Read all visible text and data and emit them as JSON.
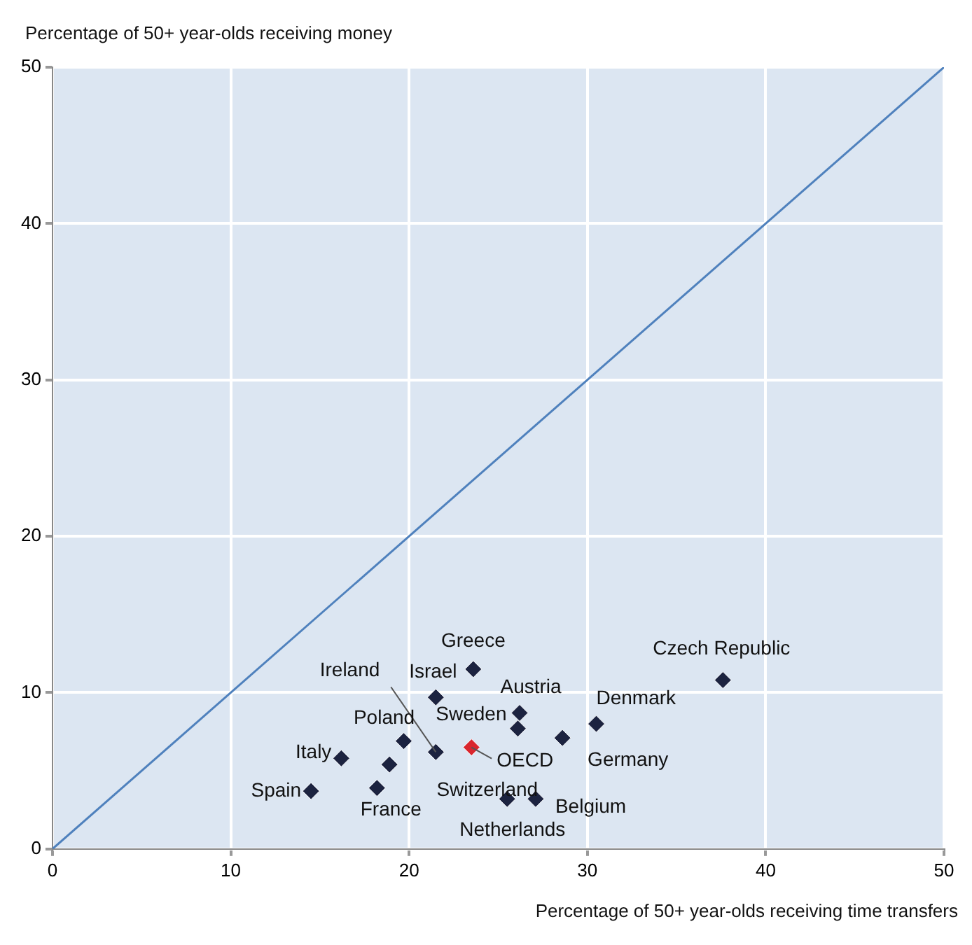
{
  "chart_data": {
    "type": "scatter",
    "ylabel": "Percentage of 50+ year-olds receiving money",
    "xlabel": "Percentage of 50+ year-olds receiving time transfers",
    "xlim": [
      0,
      50
    ],
    "ylim": [
      0,
      50
    ],
    "xticks": [
      0,
      10,
      20,
      30,
      40,
      50
    ],
    "yticks": [
      0,
      10,
      20,
      30,
      40,
      50
    ],
    "grid": true,
    "marker": "diamond",
    "legend": false,
    "series": [
      {
        "color": "#1c2340",
        "x": [
          23.6,
          21.5,
          21.5,
          19.7,
          18.9,
          16.2,
          14.5,
          18.2,
          26.2,
          26.1,
          28.6,
          30.5,
          37.6,
          25.5,
          27.1
        ],
        "values": [
          11.5,
          9.7,
          6.2,
          6.9,
          5.4,
          5.8,
          3.7,
          3.9,
          8.7,
          7.7,
          7.1,
          8.0,
          10.8,
          3.2,
          3.2
        ]
      },
      {
        "color": "#d9262e",
        "x": [
          23.5
        ],
        "values": [
          6.5
        ]
      },
      {
        "type": "line",
        "marker": "none",
        "color": "#4f81bd",
        "x": [
          0,
          50
        ],
        "values": [
          0,
          50
        ]
      }
    ],
    "annotations": [
      {
        "text": "Greece",
        "x": 23.6,
        "y": 11.5
      },
      {
        "text": "Israel",
        "x": 21.5,
        "y": 9.7
      },
      {
        "text": "Ireland",
        "x": 21.5,
        "y": 6.2
      },
      {
        "text": "Poland",
        "x": 19.7,
        "y": 6.9
      },
      {
        "text": "Italy",
        "x": 16.2,
        "y": 5.8
      },
      {
        "text": "Spain",
        "x": 14.5,
        "y": 3.7
      },
      {
        "text": "France",
        "x": 18.2,
        "y": 3.9
      },
      {
        "text": "Austria",
        "x": 26.2,
        "y": 8.7
      },
      {
        "text": "Sweden",
        "x": 26.1,
        "y": 7.7
      },
      {
        "text": "Germany",
        "x": 28.6,
        "y": 7.1
      },
      {
        "text": "Denmark",
        "x": 30.5,
        "y": 8.0
      },
      {
        "text": "Czech Republic",
        "x": 37.6,
        "y": 10.8
      },
      {
        "text": "Switzerland",
        "x": 25.5,
        "y": 3.2
      },
      {
        "text": "Belgium",
        "x": 27.1,
        "y": 3.2
      },
      {
        "text": "OECD",
        "x": 23.5,
        "y": 6.5
      },
      "Netherlands"
    ]
  }
}
